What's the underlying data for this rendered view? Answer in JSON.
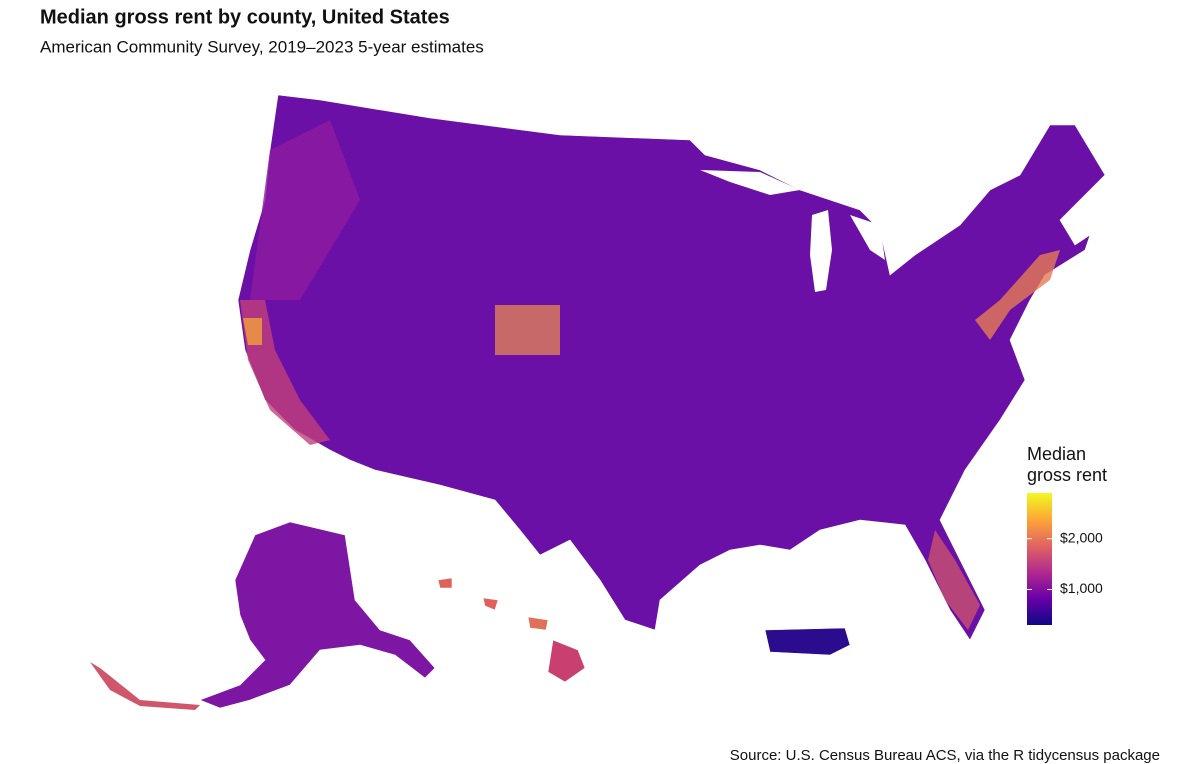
{
  "chart_data": {
    "type": "choropleth",
    "title": "Median gross rent by county, United States",
    "subtitle": "American Community Survey, 2019–2023 5-year estimates",
    "caption": "Source: U.S. Census Bureau ACS, via the R tidycensus package",
    "legend_title": "Median gross rent",
    "colors": [
      "#0d0887",
      "#6a00a8",
      "#b12a90",
      "#e16462",
      "#fca636",
      "#f0f921"
    ],
    "clim": [
      300,
      2900
    ],
    "cticks": [
      {
        "value": 1000,
        "label": "$1,000"
      },
      {
        "value": 2000,
        "label": "$2,000"
      }
    ]
  }
}
